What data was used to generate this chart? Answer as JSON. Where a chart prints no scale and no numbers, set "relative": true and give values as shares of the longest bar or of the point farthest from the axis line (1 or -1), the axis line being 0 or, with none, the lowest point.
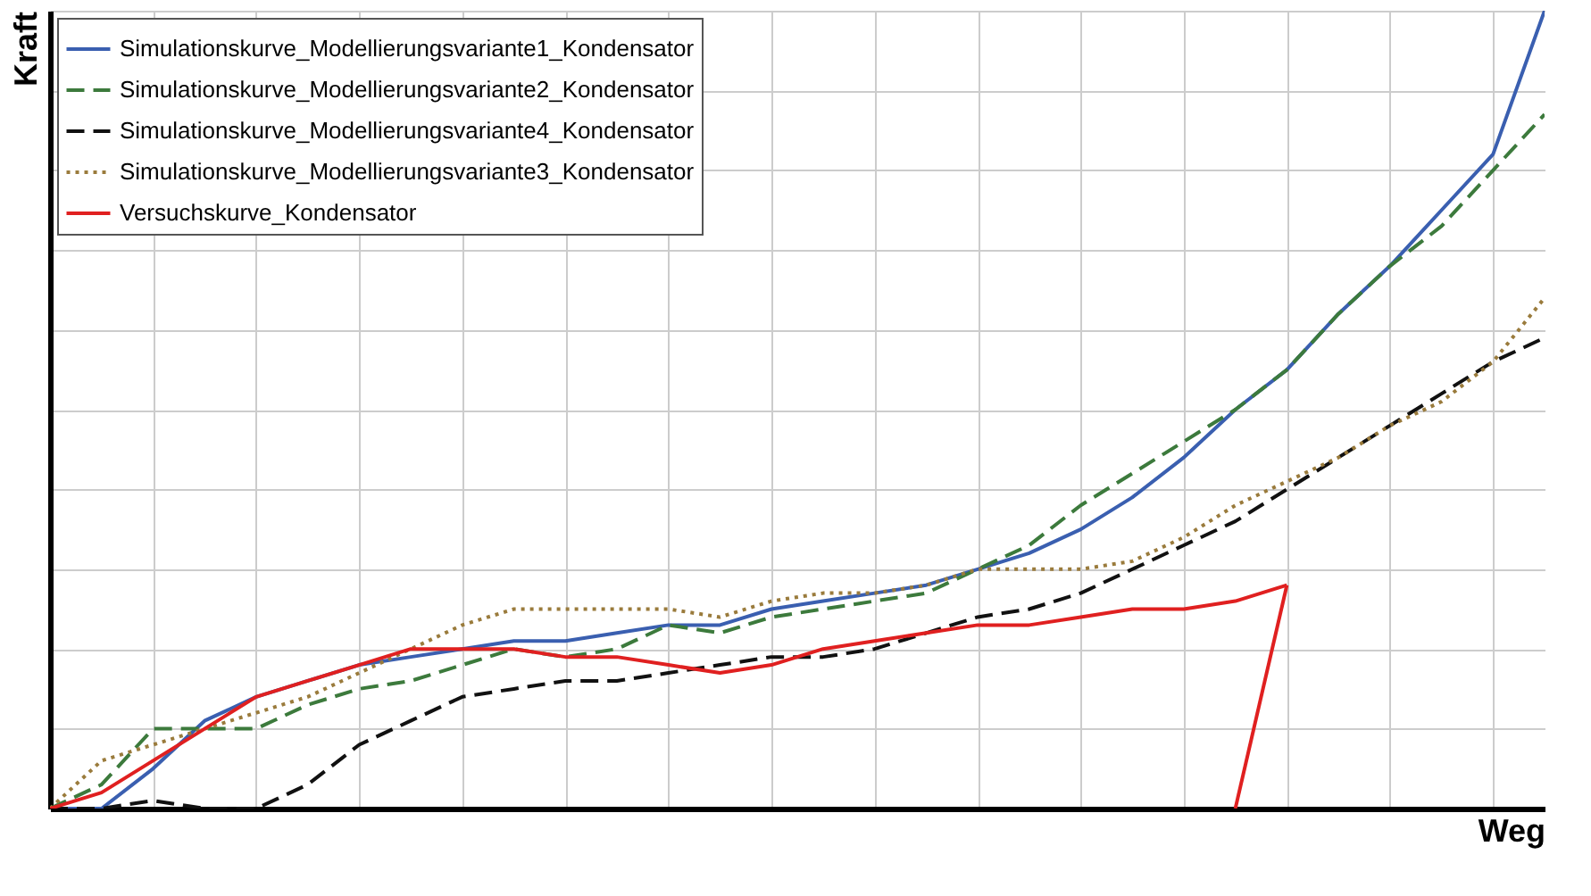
{
  "chart_data": {
    "type": "line",
    "xlabel": "Weg",
    "ylabel": "Kraft",
    "relative": true,
    "grid": true,
    "legend": "top left",
    "tick_labels": false,
    "categories": [
      null,
      null,
      null,
      null,
      null,
      null,
      null,
      null,
      null,
      null,
      null,
      null,
      null,
      null,
      null,
      null,
      null,
      null,
      null,
      null,
      null,
      null,
      null,
      null,
      null,
      null,
      null,
      null,
      null,
      null
    ],
    "series": [
      {
        "name": "Simulationskurve_Modellierungsvariante1_Kondensator",
        "color": "#3a5fb0",
        "line_style": "solid",
        "values": [
          0,
          0,
          0.05,
          0.11,
          0.14,
          0.16,
          0.18,
          0.19,
          0.2,
          0.21,
          0.21,
          0.22,
          0.23,
          0.23,
          0.25,
          0.26,
          0.27,
          0.28,
          0.3,
          0.32,
          0.35,
          0.39,
          0.44,
          0.5,
          0.55,
          0.62,
          0.68,
          0.75,
          0.82,
          1
        ]
      },
      {
        "name": "Simulationskurve_Modellierungsvariante2_Kondensator",
        "color": "#3c7a3c",
        "line_style": "dashed",
        "values": [
          0,
          0.03,
          0.1,
          0.1,
          0.1,
          0.13,
          0.15,
          0.16,
          0.18,
          0.2,
          0.19,
          0.2,
          0.23,
          0.22,
          0.24,
          0.25,
          0.26,
          0.27,
          0.3,
          0.33,
          0.38,
          0.42,
          0.46,
          0.5,
          0.55,
          0.62,
          0.68,
          0.73,
          0.8,
          0.87
        ]
      },
      {
        "name": "Simulationskurve_Modellierungsvariante4_Kondensator",
        "color": "#111111",
        "line_style": "dashed",
        "values": [
          0,
          0,
          0.01,
          0,
          0,
          0.03,
          0.08,
          0.11,
          0.14,
          0.15,
          0.16,
          0.16,
          0.17,
          0.18,
          0.19,
          0.19,
          0.2,
          0.22,
          0.24,
          0.25,
          0.27,
          0.3,
          0.33,
          0.36,
          0.4,
          0.44,
          0.48,
          0.52,
          0.56,
          0.59
        ]
      },
      {
        "name": "Simulationskurve_Modellierungsvariante3_Kondensator",
        "color": "#9a7b3c",
        "line_style": "dotted",
        "values": [
          0,
          0.06,
          0.08,
          0.1,
          0.12,
          0.14,
          0.17,
          0.2,
          0.23,
          0.25,
          0.25,
          0.25,
          0.25,
          0.24,
          0.26,
          0.27,
          0.27,
          0.28,
          0.3,
          0.3,
          0.3,
          0.31,
          0.34,
          0.38,
          0.41,
          0.44,
          0.48,
          0.51,
          0.56,
          0.64
        ]
      },
      {
        "name": "Versuchskurve_Kondensator",
        "color": "#e02020",
        "line_style": "solid",
        "values": [
          0,
          0.02,
          0.06,
          0.1,
          0.14,
          0.16,
          0.18,
          0.2,
          0.2,
          0.2,
          0.19,
          0.19,
          0.18,
          0.17,
          0.18,
          0.2,
          0.21,
          0.22,
          0.23,
          0.23,
          0.24,
          0.25,
          0.25,
          0.26,
          0.28,
          null,
          null,
          null,
          null,
          null
        ]
      },
      {
        "color": "#e02020",
        "line_style": "solid",
        "values": [
          null,
          null,
          null,
          null,
          null,
          null,
          null,
          null,
          null,
          null,
          null,
          null,
          null,
          null,
          null,
          null,
          null,
          null,
          null,
          null,
          null,
          null,
          null,
          0,
          0.28,
          null,
          null,
          null,
          null,
          null
        ]
      }
    ]
  }
}
